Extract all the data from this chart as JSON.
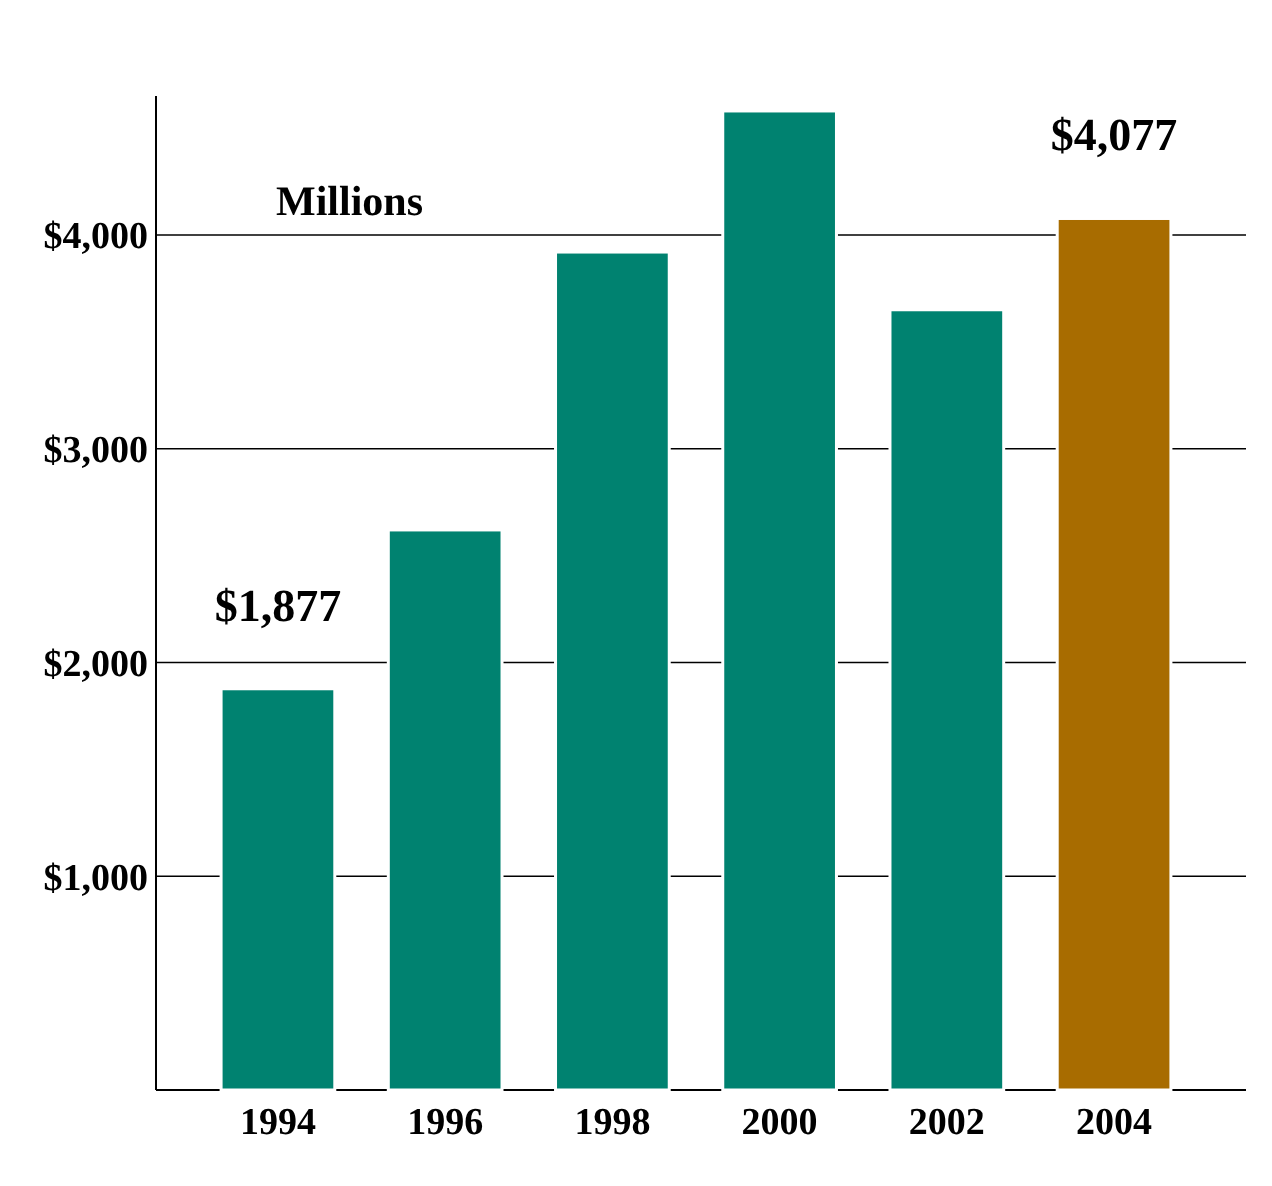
{
  "chart_data": {
    "type": "bar",
    "ylabel": "Millions",
    "categories": [
      "1994",
      "1996",
      "1998",
      "2000",
      "2002",
      "2004"
    ],
    "values": [
      1877,
      2620,
      3920,
      4580,
      3650,
      4077
    ],
    "colors": [
      "#008270",
      "#008270",
      "#008270",
      "#008270",
      "#008270",
      "#a86c00"
    ],
    "value_labels": [
      "$1,877",
      null,
      null,
      null,
      null,
      "$4,077"
    ],
    "ylim": [
      0,
      4650
    ],
    "yticks": [
      {
        "value": 1000,
        "label": "$1,000"
      },
      {
        "value": 2000,
        "label": "$2,000"
      },
      {
        "value": 3000,
        "label": "$3,000"
      },
      {
        "value": 4000,
        "label": "$4,000"
      }
    ],
    "grid": "y"
  }
}
